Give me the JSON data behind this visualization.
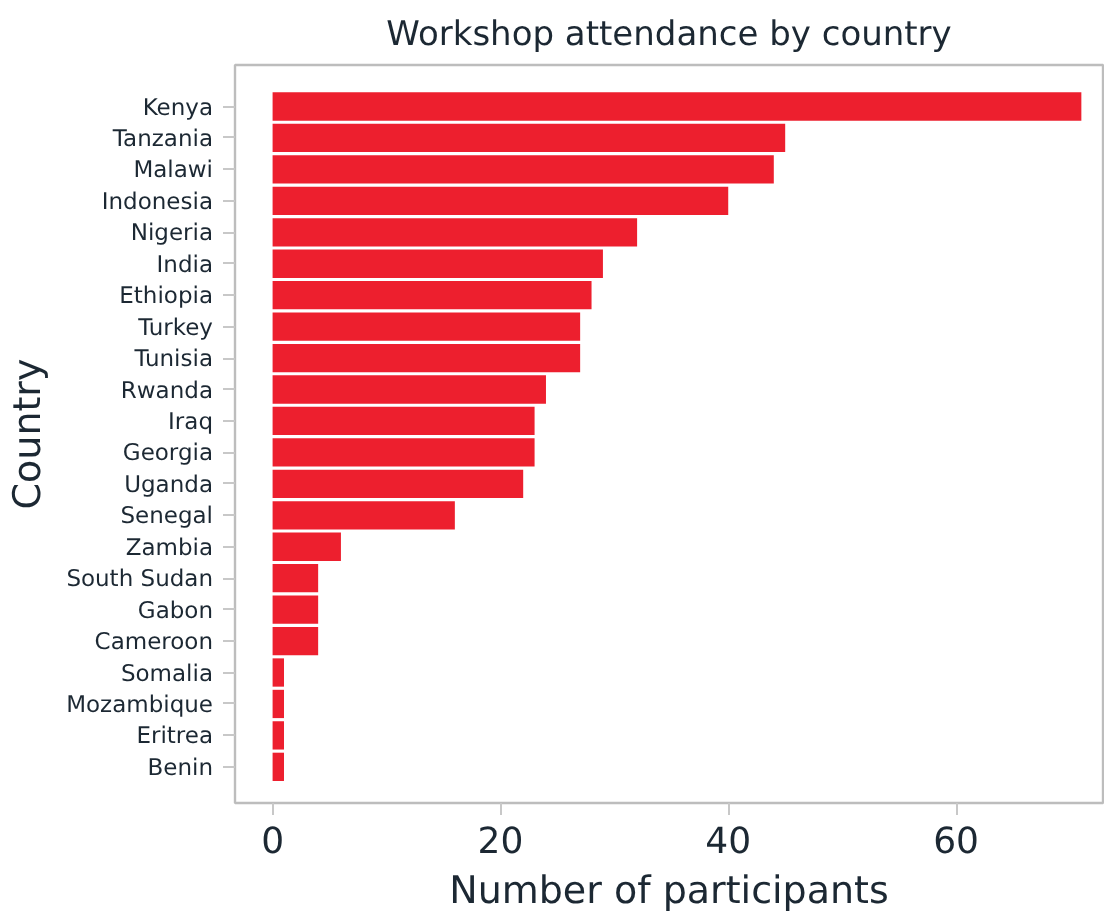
{
  "chart_data": {
    "type": "bar",
    "orientation": "horizontal",
    "title": "Workshop attendance by country",
    "xlabel": "Number of participants",
    "ylabel": "Country",
    "categories": [
      "Kenya",
      "Tanzania",
      "Malawi",
      "Indonesia",
      "Nigeria",
      "India",
      "Ethiopia",
      "Turkey",
      "Tunisia",
      "Rwanda",
      "Iraq",
      "Georgia",
      "Uganda",
      "Senegal",
      "Zambia",
      "South Sudan",
      "Gabon",
      "Cameroon",
      "Somalia",
      "Mozambique",
      "Eritrea",
      "Benin"
    ],
    "values": [
      71,
      45,
      44,
      40,
      32,
      29,
      28,
      27,
      27,
      24,
      23,
      23,
      22,
      16,
      6,
      4,
      4,
      4,
      1,
      1,
      1,
      1
    ],
    "color": "#ed1f2e",
    "xlim": [
      -3.3,
      72.9
    ],
    "xticks": [
      0,
      20,
      40,
      60
    ],
    "grid": false
  }
}
